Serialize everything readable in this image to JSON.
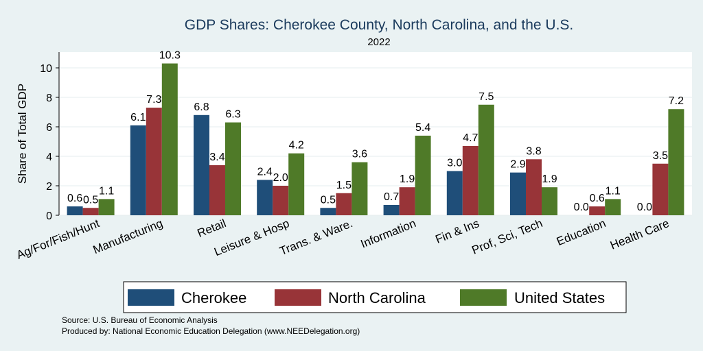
{
  "chart_data": {
    "type": "bar",
    "title": "GDP Shares: Cherokee County, North Carolina, and the U.S.",
    "subtitle": "2022",
    "ylabel": "Share of Total GDP",
    "ylim": [
      0,
      11
    ],
    "yticks": [
      0,
      2,
      4,
      6,
      8,
      10
    ],
    "grid": true,
    "legend_position": "bottom",
    "categories": [
      "Ag/For/Fish/Hunt",
      "Manufacturing",
      "Retail",
      "Leisure & Hosp",
      "Trans. & Ware.",
      "Information",
      "Fin & Ins",
      "Prof, Sci, Tech",
      "Education",
      "Health Care"
    ],
    "series": [
      {
        "name": "Cherokee",
        "color": "#1f4e79",
        "values": [
          0.6,
          6.1,
          6.8,
          2.4,
          0.5,
          0.7,
          3.0,
          2.9,
          0.0,
          0.0
        ]
      },
      {
        "name": "North Carolina",
        "color": "#983438",
        "values": [
          0.5,
          7.3,
          3.4,
          2.0,
          1.5,
          1.9,
          4.7,
          3.8,
          0.6,
          3.5
        ]
      },
      {
        "name": "United States",
        "color": "#4f7a28",
        "values": [
          1.1,
          10.3,
          6.3,
          4.2,
          3.6,
          5.4,
          7.5,
          1.9,
          1.1,
          7.2
        ]
      }
    ]
  },
  "footer": {
    "source": "Source: U.S. Bureau of Economic Analysis",
    "produced_by": "Produced by: National Economic Education Delegation (www.NEEDelegation.org)"
  }
}
